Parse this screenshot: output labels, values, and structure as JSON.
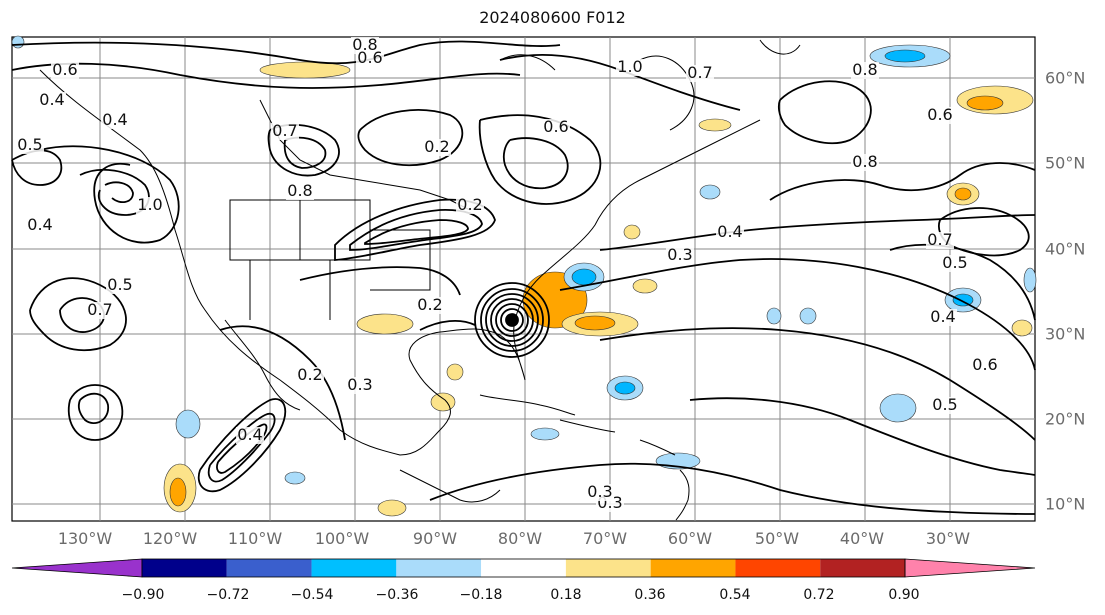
{
  "title": "2024080600 F012",
  "map": {
    "type": "contour-map",
    "region": "North America / Atlantic",
    "longitude_labels": [
      "130°W",
      "120°W",
      "110°W",
      "100°W",
      "90°W",
      "80°W",
      "70°W",
      "60°W",
      "50°W",
      "40°W",
      "30°W"
    ],
    "latitude_labels": [
      "60°N",
      "50°N",
      "40°N",
      "30°N",
      "20°N",
      "10°N"
    ],
    "contour_labels": [
      "0.8",
      "0.6",
      "0.6",
      "0.4",
      "0.7",
      "0.4",
      "1.0",
      "0.7",
      "0.6",
      "0.8",
      "1.0",
      "0.5",
      "0.7",
      "0.2",
      "0.8",
      "0.2",
      "0.4",
      "0.5",
      "0.2",
      "0.3",
      "0.4",
      "0.3",
      "0.2",
      "0.3",
      "0.5",
      "0.7",
      "0.4",
      "0.6",
      "0.5",
      "0.3",
      "0.8",
      "0.6",
      "0.4"
    ],
    "shading_colors": {
      "light_blue": "#aadcfa",
      "blue": "#00b6ff",
      "light_yellow": "#fce38a",
      "orange": "#ffa500"
    },
    "tropical_cyclone_center": "strong closed circulation near 31°N 80°W"
  },
  "colorbar": {
    "ticks": [
      "−0.90",
      "−0.72",
      "−0.54",
      "−0.36",
      "−0.18",
      "0.18",
      "0.36",
      "0.54",
      "0.72",
      "0.90"
    ],
    "colors": [
      "#9932cc",
      "#00008b",
      "#3a5fcd",
      "#00bfff",
      "#aadcfa",
      "#ffffff",
      "#fce38a",
      "#ffa500",
      "#ff4500",
      "#b22222",
      "#ff82ab"
    ]
  }
}
